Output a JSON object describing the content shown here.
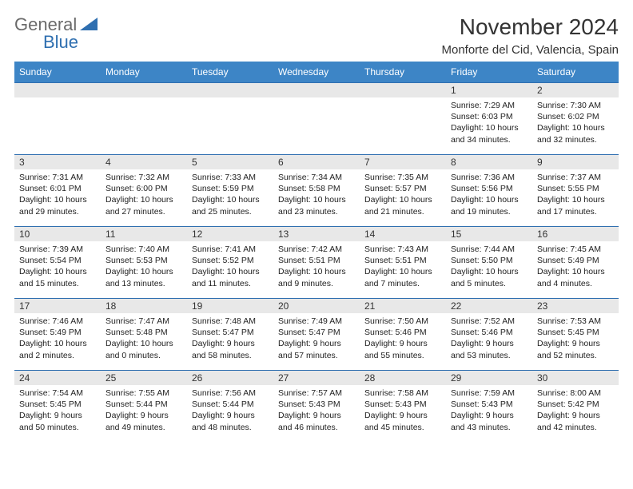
{
  "logo": {
    "text_a": "General",
    "text_b": "Blue",
    "tri_color": "#2f6fb0"
  },
  "title": "November 2024",
  "location": "Monforte del Cid, Valencia, Spain",
  "colors": {
    "header_bg": "#3d85c6",
    "header_text": "#ffffff",
    "row_border": "#2f6fb0",
    "daynum_bg": "#e8e8e8",
    "logo_gray": "#6a6a6a",
    "logo_blue": "#2f6fb0"
  },
  "weekdays": [
    "Sunday",
    "Monday",
    "Tuesday",
    "Wednesday",
    "Thursday",
    "Friday",
    "Saturday"
  ],
  "weeks": [
    [
      {
        "n": "",
        "sunrise": "",
        "sunset": "",
        "daylight": ""
      },
      {
        "n": "",
        "sunrise": "",
        "sunset": "",
        "daylight": ""
      },
      {
        "n": "",
        "sunrise": "",
        "sunset": "",
        "daylight": ""
      },
      {
        "n": "",
        "sunrise": "",
        "sunset": "",
        "daylight": ""
      },
      {
        "n": "",
        "sunrise": "",
        "sunset": "",
        "daylight": ""
      },
      {
        "n": "1",
        "sunrise": "Sunrise: 7:29 AM",
        "sunset": "Sunset: 6:03 PM",
        "daylight": "Daylight: 10 hours and 34 minutes."
      },
      {
        "n": "2",
        "sunrise": "Sunrise: 7:30 AM",
        "sunset": "Sunset: 6:02 PM",
        "daylight": "Daylight: 10 hours and 32 minutes."
      }
    ],
    [
      {
        "n": "3",
        "sunrise": "Sunrise: 7:31 AM",
        "sunset": "Sunset: 6:01 PM",
        "daylight": "Daylight: 10 hours and 29 minutes."
      },
      {
        "n": "4",
        "sunrise": "Sunrise: 7:32 AM",
        "sunset": "Sunset: 6:00 PM",
        "daylight": "Daylight: 10 hours and 27 minutes."
      },
      {
        "n": "5",
        "sunrise": "Sunrise: 7:33 AM",
        "sunset": "Sunset: 5:59 PM",
        "daylight": "Daylight: 10 hours and 25 minutes."
      },
      {
        "n": "6",
        "sunrise": "Sunrise: 7:34 AM",
        "sunset": "Sunset: 5:58 PM",
        "daylight": "Daylight: 10 hours and 23 minutes."
      },
      {
        "n": "7",
        "sunrise": "Sunrise: 7:35 AM",
        "sunset": "Sunset: 5:57 PM",
        "daylight": "Daylight: 10 hours and 21 minutes."
      },
      {
        "n": "8",
        "sunrise": "Sunrise: 7:36 AM",
        "sunset": "Sunset: 5:56 PM",
        "daylight": "Daylight: 10 hours and 19 minutes."
      },
      {
        "n": "9",
        "sunrise": "Sunrise: 7:37 AM",
        "sunset": "Sunset: 5:55 PM",
        "daylight": "Daylight: 10 hours and 17 minutes."
      }
    ],
    [
      {
        "n": "10",
        "sunrise": "Sunrise: 7:39 AM",
        "sunset": "Sunset: 5:54 PM",
        "daylight": "Daylight: 10 hours and 15 minutes."
      },
      {
        "n": "11",
        "sunrise": "Sunrise: 7:40 AM",
        "sunset": "Sunset: 5:53 PM",
        "daylight": "Daylight: 10 hours and 13 minutes."
      },
      {
        "n": "12",
        "sunrise": "Sunrise: 7:41 AM",
        "sunset": "Sunset: 5:52 PM",
        "daylight": "Daylight: 10 hours and 11 minutes."
      },
      {
        "n": "13",
        "sunrise": "Sunrise: 7:42 AM",
        "sunset": "Sunset: 5:51 PM",
        "daylight": "Daylight: 10 hours and 9 minutes."
      },
      {
        "n": "14",
        "sunrise": "Sunrise: 7:43 AM",
        "sunset": "Sunset: 5:51 PM",
        "daylight": "Daylight: 10 hours and 7 minutes."
      },
      {
        "n": "15",
        "sunrise": "Sunrise: 7:44 AM",
        "sunset": "Sunset: 5:50 PM",
        "daylight": "Daylight: 10 hours and 5 minutes."
      },
      {
        "n": "16",
        "sunrise": "Sunrise: 7:45 AM",
        "sunset": "Sunset: 5:49 PM",
        "daylight": "Daylight: 10 hours and 4 minutes."
      }
    ],
    [
      {
        "n": "17",
        "sunrise": "Sunrise: 7:46 AM",
        "sunset": "Sunset: 5:49 PM",
        "daylight": "Daylight: 10 hours and 2 minutes."
      },
      {
        "n": "18",
        "sunrise": "Sunrise: 7:47 AM",
        "sunset": "Sunset: 5:48 PM",
        "daylight": "Daylight: 10 hours and 0 minutes."
      },
      {
        "n": "19",
        "sunrise": "Sunrise: 7:48 AM",
        "sunset": "Sunset: 5:47 PM",
        "daylight": "Daylight: 9 hours and 58 minutes."
      },
      {
        "n": "20",
        "sunrise": "Sunrise: 7:49 AM",
        "sunset": "Sunset: 5:47 PM",
        "daylight": "Daylight: 9 hours and 57 minutes."
      },
      {
        "n": "21",
        "sunrise": "Sunrise: 7:50 AM",
        "sunset": "Sunset: 5:46 PM",
        "daylight": "Daylight: 9 hours and 55 minutes."
      },
      {
        "n": "22",
        "sunrise": "Sunrise: 7:52 AM",
        "sunset": "Sunset: 5:46 PM",
        "daylight": "Daylight: 9 hours and 53 minutes."
      },
      {
        "n": "23",
        "sunrise": "Sunrise: 7:53 AM",
        "sunset": "Sunset: 5:45 PM",
        "daylight": "Daylight: 9 hours and 52 minutes."
      }
    ],
    [
      {
        "n": "24",
        "sunrise": "Sunrise: 7:54 AM",
        "sunset": "Sunset: 5:45 PM",
        "daylight": "Daylight: 9 hours and 50 minutes."
      },
      {
        "n": "25",
        "sunrise": "Sunrise: 7:55 AM",
        "sunset": "Sunset: 5:44 PM",
        "daylight": "Daylight: 9 hours and 49 minutes."
      },
      {
        "n": "26",
        "sunrise": "Sunrise: 7:56 AM",
        "sunset": "Sunset: 5:44 PM",
        "daylight": "Daylight: 9 hours and 48 minutes."
      },
      {
        "n": "27",
        "sunrise": "Sunrise: 7:57 AM",
        "sunset": "Sunset: 5:43 PM",
        "daylight": "Daylight: 9 hours and 46 minutes."
      },
      {
        "n": "28",
        "sunrise": "Sunrise: 7:58 AM",
        "sunset": "Sunset: 5:43 PM",
        "daylight": "Daylight: 9 hours and 45 minutes."
      },
      {
        "n": "29",
        "sunrise": "Sunrise: 7:59 AM",
        "sunset": "Sunset: 5:43 PM",
        "daylight": "Daylight: 9 hours and 43 minutes."
      },
      {
        "n": "30",
        "sunrise": "Sunrise: 8:00 AM",
        "sunset": "Sunset: 5:42 PM",
        "daylight": "Daylight: 9 hours and 42 minutes."
      }
    ]
  ]
}
